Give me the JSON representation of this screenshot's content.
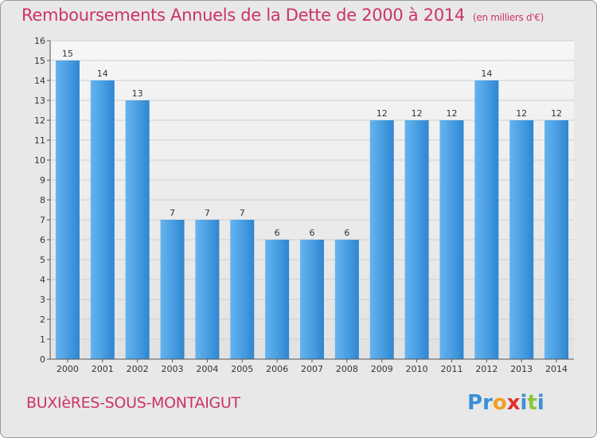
{
  "chart_data": {
    "type": "bar",
    "title": "Remboursements Annuels de la Dette de 2000 à 2014",
    "unit": "(en milliers d'€)",
    "categories": [
      "2000",
      "2001",
      "2002",
      "2003",
      "2004",
      "2005",
      "2006",
      "2007",
      "2008",
      "2009",
      "2010",
      "2011",
      "2012",
      "2013",
      "2014"
    ],
    "values": [
      15,
      14,
      13,
      7,
      7,
      7,
      6,
      6,
      6,
      12,
      12,
      12,
      14,
      12,
      12
    ],
    "ylim": [
      0,
      16
    ],
    "yticks": [
      "0",
      "1",
      "2",
      "3",
      "4",
      "5",
      "6",
      "7",
      "8",
      "9",
      "10",
      "11",
      "12",
      "13",
      "14",
      "15",
      "16"
    ],
    "grid": true,
    "bar_color": "#3a8fd6"
  },
  "commune": "BUXIèRES-SOUS-MONTAIGUT",
  "logo": {
    "letters": [
      "P",
      "r",
      "o",
      "x",
      "i",
      "t",
      "i"
    ],
    "colors": [
      "#3b8fd8",
      "#3b8fd8",
      "#f0a020",
      "#e03030",
      "#3b8fd8",
      "#8cc63f",
      "#3b8fd8"
    ]
  }
}
